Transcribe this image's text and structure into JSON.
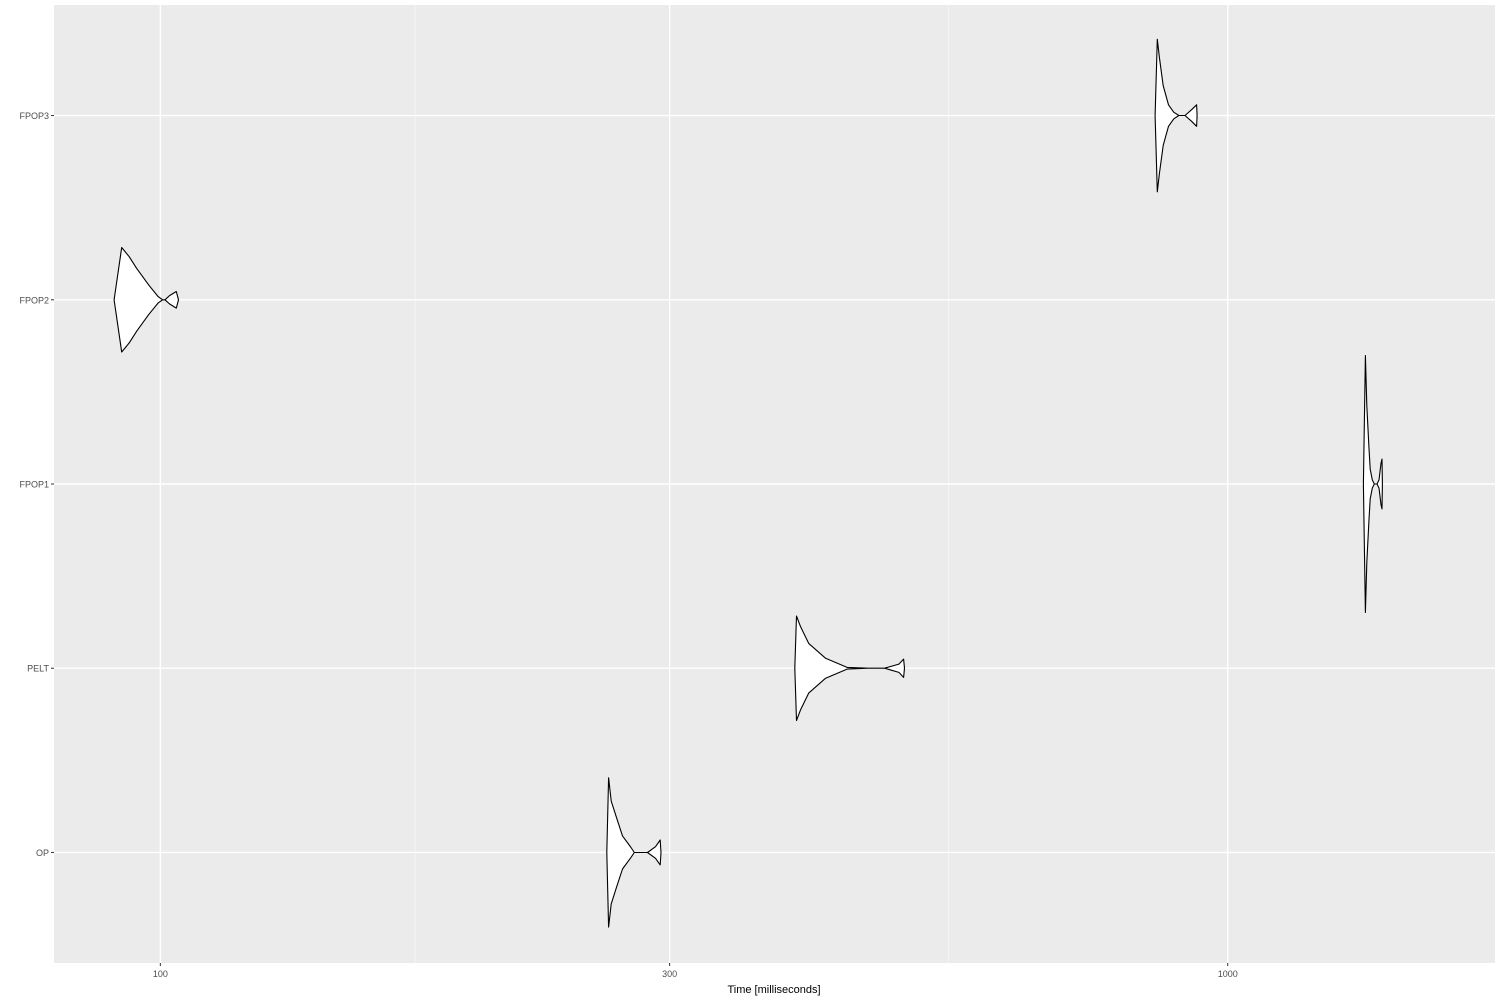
{
  "chart_data": {
    "type": "violin",
    "xlabel": "Time [milliseconds]",
    "ylabel": "",
    "x_scale": "log10",
    "xlim": [
      79.5,
      1780
    ],
    "x_ticks": [
      {
        "value": 100,
        "label": "100"
      },
      {
        "value": 300,
        "label": "300"
      },
      {
        "value": 1000,
        "label": "1000"
      }
    ],
    "x_minor_gridlines": [
      173.2,
      547.7
    ],
    "categories": [
      "OP",
      "PELT",
      "FPOP1",
      "FPOP2",
      "FPOP3"
    ],
    "series": [
      {
        "name": "OP",
        "profile": [
          [
            262.0,
            0.0
          ],
          [
            263.0,
            0.9
          ],
          [
            264.5,
            0.62
          ],
          [
            267.5,
            0.42
          ],
          [
            271.0,
            0.2
          ],
          [
            276.0,
            0.06
          ],
          [
            278.0,
            0.0
          ],
          [
            282.0,
            0.0
          ],
          [
            286.0,
            0.0
          ],
          [
            291.0,
            0.07
          ],
          [
            294.0,
            0.15
          ],
          [
            294.5,
            0.0
          ]
        ]
      },
      {
        "name": "PELT",
        "profile": [
          [
            393.0,
            0.0
          ],
          [
            394.5,
            0.63
          ],
          [
            398.0,
            0.5
          ],
          [
            405.0,
            0.3
          ],
          [
            420.0,
            0.12
          ],
          [
            440.0,
            0.01
          ],
          [
            460.0,
            0.0
          ],
          [
            477.0,
            0.0
          ],
          [
            492.0,
            0.05
          ],
          [
            497.0,
            0.11
          ],
          [
            498.0,
            0.0
          ]
        ]
      },
      {
        "name": "FPOP1",
        "profile": [
          [
            1340.0,
            0.0
          ],
          [
            1346.0,
            1.55
          ],
          [
            1350.0,
            0.95
          ],
          [
            1356.0,
            0.45
          ],
          [
            1360.0,
            0.18
          ],
          [
            1366.0,
            0.05
          ],
          [
            1372.0,
            0.0
          ],
          [
            1380.0,
            0.0
          ],
          [
            1386.0,
            0.05
          ],
          [
            1392.0,
            0.25
          ],
          [
            1395.0,
            0.3
          ],
          [
            1396.0,
            0.0
          ]
        ]
      },
      {
        "name": "FPOP2",
        "profile": [
          [
            90.5,
            0.0
          ],
          [
            92.0,
            0.63
          ],
          [
            93.5,
            0.52
          ],
          [
            95.0,
            0.38
          ],
          [
            97.5,
            0.18
          ],
          [
            99.5,
            0.04
          ],
          [
            100.5,
            0.0
          ],
          [
            101.0,
            0.0
          ],
          [
            102.0,
            0.05
          ],
          [
            103.5,
            0.1
          ],
          [
            104.0,
            0.0
          ]
        ]
      },
      {
        "name": "FPOP3",
        "profile": [
          [
            855.0,
            0.0
          ],
          [
            859.0,
            0.92
          ],
          [
            863.0,
            0.7
          ],
          [
            870.0,
            0.36
          ],
          [
            880.0,
            0.13
          ],
          [
            890.0,
            0.04
          ],
          [
            900.0,
            0.0
          ],
          [
            912.0,
            0.0
          ],
          [
            925.0,
            0.07
          ],
          [
            935.0,
            0.13
          ],
          [
            936.0,
            0.0
          ]
        ]
      }
    ]
  }
}
